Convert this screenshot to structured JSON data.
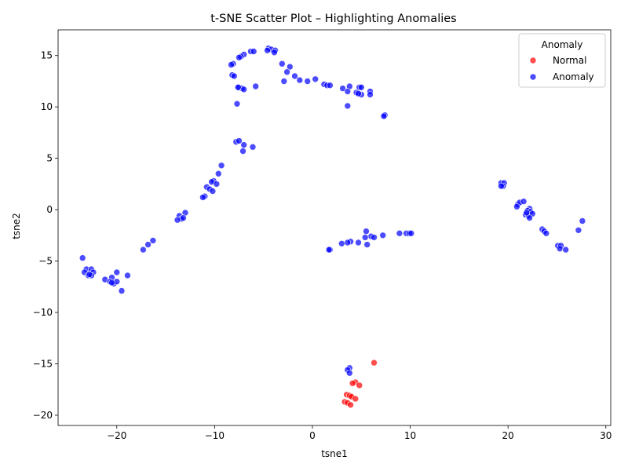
{
  "chart_data": {
    "type": "scatter",
    "title": "t-SNE Scatter Plot – Highlighting Anomalies",
    "xlabel": "tsne1",
    "ylabel": "tsne2",
    "xlim": [
      -26,
      30.5
    ],
    "ylim": [
      -21,
      17.5
    ],
    "xticks": [
      -20,
      -10,
      0,
      10,
      20,
      30
    ],
    "yticks": [
      -20,
      -15,
      -10,
      -5,
      0,
      5,
      10,
      15
    ],
    "grid": false,
    "legend": {
      "title": "Anomaly",
      "placement": "upper-right",
      "entries": [
        {
          "label": "Normal",
          "color": "#ff0000"
        },
        {
          "label": "Anomaly",
          "color": "#0000ff"
        }
      ]
    },
    "series": [
      {
        "name": "Normal",
        "color": "#ff0000",
        "points": [
          [
            6.3,
            -14.9
          ],
          [
            4.4,
            -16.8
          ],
          [
            4.1,
            -16.9
          ],
          [
            4.8,
            -17.1
          ],
          [
            3.5,
            -18.0
          ],
          [
            3.8,
            -18.1
          ],
          [
            4.0,
            -18.2
          ],
          [
            4.4,
            -18.4
          ],
          [
            3.3,
            -18.7
          ],
          [
            3.6,
            -18.8
          ],
          [
            3.9,
            -19.0
          ]
        ]
      },
      {
        "name": "Anomaly",
        "color": "#0000ff",
        "points": [
          [
            -4.5,
            15.7
          ],
          [
            -4.2,
            15.6
          ],
          [
            -3.8,
            15.5
          ],
          [
            -4.6,
            15.5
          ],
          [
            -3.9,
            15.3
          ],
          [
            -6.3,
            15.4
          ],
          [
            -6.0,
            15.4
          ],
          [
            -7.0,
            15.1
          ],
          [
            -7.3,
            14.9
          ],
          [
            -7.5,
            14.8
          ],
          [
            -8.1,
            14.2
          ],
          [
            -8.3,
            14.1
          ],
          [
            -3.1,
            14.2
          ],
          [
            -2.3,
            13.9
          ],
          [
            -2.6,
            13.4
          ],
          [
            -8.2,
            13.1
          ],
          [
            -8.0,
            13.0
          ],
          [
            -1.8,
            13.0
          ],
          [
            -1.3,
            12.6
          ],
          [
            -2.9,
            12.5
          ],
          [
            -0.5,
            12.5
          ],
          [
            0.3,
            12.7
          ],
          [
            1.2,
            12.2
          ],
          [
            1.5,
            12.1
          ],
          [
            1.8,
            12.1
          ],
          [
            -7.5,
            11.9
          ],
          [
            -7.2,
            11.8
          ],
          [
            -7.0,
            11.7
          ],
          [
            -5.8,
            12.0
          ],
          [
            -7.6,
            11.9
          ],
          [
            3.1,
            11.8
          ],
          [
            3.8,
            12.0
          ],
          [
            4.8,
            11.9
          ],
          [
            5.0,
            11.9
          ],
          [
            3.6,
            11.5
          ],
          [
            4.5,
            11.4
          ],
          [
            5.0,
            11.2
          ],
          [
            4.7,
            11.3
          ],
          [
            5.9,
            11.5
          ],
          [
            5.9,
            11.2
          ],
          [
            -7.7,
            10.3
          ],
          [
            3.6,
            10.1
          ],
          [
            7.4,
            9.2
          ],
          [
            7.3,
            9.1
          ],
          [
            -7.8,
            6.6
          ],
          [
            -7.5,
            6.7
          ],
          [
            -7.0,
            6.3
          ],
          [
            -6.1,
            6.1
          ],
          [
            -7.1,
            5.7
          ],
          [
            -9.3,
            4.3
          ],
          [
            -9.6,
            3.5
          ],
          [
            -10.1,
            2.8
          ],
          [
            -10.3,
            2.7
          ],
          [
            -9.8,
            2.5
          ],
          [
            -10.8,
            2.2
          ],
          [
            -10.5,
            2.0
          ],
          [
            -10.2,
            1.8
          ],
          [
            -11.0,
            1.3
          ],
          [
            -11.2,
            1.2
          ],
          [
            -13.0,
            -0.3
          ],
          [
            -13.6,
            -0.6
          ],
          [
            -13.4,
            -0.9
          ],
          [
            -13.8,
            -1.0
          ],
          [
            -13.2,
            -0.8
          ],
          [
            -16.3,
            -3.0
          ],
          [
            -16.8,
            -3.4
          ],
          [
            -17.3,
            -3.9
          ],
          [
            -23.5,
            -4.7
          ],
          [
            -23.1,
            -5.8
          ],
          [
            -22.6,
            -5.8
          ],
          [
            -23.3,
            -6.1
          ],
          [
            -22.4,
            -6.1
          ],
          [
            -22.9,
            -6.4
          ],
          [
            -22.6,
            -6.4
          ],
          [
            -22.8,
            -6.3
          ],
          [
            -20.0,
            -6.1
          ],
          [
            -20.5,
            -6.6
          ],
          [
            -18.9,
            -6.4
          ],
          [
            -21.2,
            -6.8
          ],
          [
            -20.7,
            -7.0
          ],
          [
            -20.3,
            -7.2
          ],
          [
            -20.0,
            -7.0
          ],
          [
            -20.5,
            -7.1
          ],
          [
            -19.5,
            -7.9
          ],
          [
            19.3,
            2.6
          ],
          [
            19.6,
            2.6
          ],
          [
            19.5,
            2.3
          ],
          [
            19.3,
            2.3
          ],
          [
            21.0,
            0.5
          ],
          [
            21.2,
            0.7
          ],
          [
            21.6,
            0.8
          ],
          [
            20.9,
            0.3
          ],
          [
            22.2,
            0.1
          ],
          [
            22.0,
            -0.1
          ],
          [
            22.3,
            -0.2
          ],
          [
            21.8,
            -0.5
          ],
          [
            22.1,
            -0.6
          ],
          [
            22.5,
            -0.4
          ],
          [
            22.2,
            -0.8
          ],
          [
            21.9,
            -0.3
          ],
          [
            23.5,
            -1.9
          ],
          [
            23.7,
            -2.1
          ],
          [
            23.9,
            -2.3
          ],
          [
            27.2,
            -2.0
          ],
          [
            27.6,
            -1.1
          ],
          [
            25.1,
            -3.5
          ],
          [
            25.4,
            -3.5
          ],
          [
            25.3,
            -3.8
          ],
          [
            25.9,
            -3.9
          ],
          [
            5.5,
            -2.1
          ],
          [
            6.0,
            -2.6
          ],
          [
            5.4,
            -2.7
          ],
          [
            6.3,
            -2.7
          ],
          [
            7.2,
            -2.5
          ],
          [
            8.9,
            -2.3
          ],
          [
            9.6,
            -2.3
          ],
          [
            9.9,
            -2.3
          ],
          [
            10.1,
            -2.3
          ],
          [
            3.9,
            -3.1
          ],
          [
            3.6,
            -3.2
          ],
          [
            3.0,
            -3.3
          ],
          [
            4.7,
            -3.2
          ],
          [
            5.6,
            -3.4
          ],
          [
            1.8,
            -3.9
          ],
          [
            1.7,
            -3.9
          ],
          [
            3.8,
            -15.4
          ],
          [
            3.6,
            -15.6
          ],
          [
            3.8,
            -15.9
          ]
        ]
      }
    ]
  }
}
